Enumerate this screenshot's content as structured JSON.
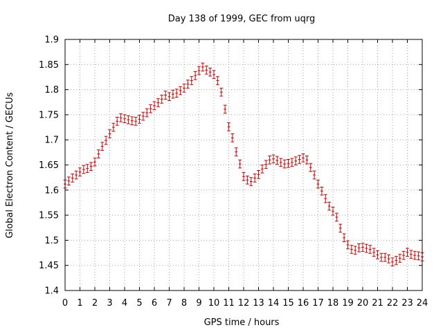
{
  "chart_data": {
    "type": "line",
    "title": "Day 138 of 1999, GEC from uqrg",
    "xlabel": "GPS time / hours",
    "ylabel": "Global Electron Content / GECUs",
    "xlim": [
      0,
      24
    ],
    "ylim": [
      1.4,
      1.9
    ],
    "xticks": [
      "0",
      "1",
      "2",
      "3",
      "4",
      "5",
      "6",
      "7",
      "8",
      "9",
      "10",
      "11",
      "12",
      "13",
      "14",
      "15",
      "16",
      "17",
      "18",
      "19",
      "20",
      "21",
      "22",
      "23",
      "24"
    ],
    "yticks": [
      "1.4",
      "1.45",
      "1.5",
      "1.55",
      "1.6",
      "1.65",
      "1.7",
      "1.75",
      "1.8",
      "1.85",
      "1.9"
    ],
    "grid": true,
    "series_color": "#cc0000",
    "error": 0.008,
    "series": [
      {
        "name": "GEC",
        "x": [
          0.0,
          0.25,
          0.5,
          0.75,
          1.0,
          1.25,
          1.5,
          1.75,
          2.0,
          2.25,
          2.5,
          2.75,
          3.0,
          3.25,
          3.5,
          3.75,
          4.0,
          4.25,
          4.5,
          4.75,
          5.0,
          5.25,
          5.5,
          5.75,
          6.0,
          6.25,
          6.5,
          6.75,
          7.0,
          7.25,
          7.5,
          7.75,
          8.0,
          8.25,
          8.5,
          8.75,
          9.0,
          9.25,
          9.5,
          9.75,
          10.0,
          10.25,
          10.5,
          10.75,
          11.0,
          11.25,
          11.5,
          11.75,
          12.0,
          12.25,
          12.5,
          12.75,
          13.0,
          13.25,
          13.5,
          13.75,
          14.0,
          14.25,
          14.5,
          14.75,
          15.0,
          15.25,
          15.5,
          15.75,
          16.0,
          16.25,
          16.5,
          16.75,
          17.0,
          17.25,
          17.5,
          17.75,
          18.0,
          18.25,
          18.5,
          18.75,
          19.0,
          19.25,
          19.5,
          19.75,
          20.0,
          20.25,
          20.5,
          20.75,
          21.0,
          21.25,
          21.5,
          21.75,
          22.0,
          22.25,
          22.5,
          22.75,
          23.0,
          23.25,
          23.5,
          23.75,
          24.0
        ],
        "values": [
          1.612,
          1.618,
          1.624,
          1.63,
          1.636,
          1.641,
          1.643,
          1.647,
          1.656,
          1.672,
          1.687,
          1.699,
          1.712,
          1.725,
          1.737,
          1.744,
          1.742,
          1.74,
          1.738,
          1.737,
          1.741,
          1.747,
          1.754,
          1.762,
          1.768,
          1.774,
          1.781,
          1.789,
          1.786,
          1.791,
          1.793,
          1.798,
          1.803,
          1.811,
          1.818,
          1.828,
          1.838,
          1.845,
          1.839,
          1.835,
          1.83,
          1.818,
          1.795,
          1.761,
          1.726,
          1.704,
          1.676,
          1.652,
          1.627,
          1.62,
          1.617,
          1.624,
          1.631,
          1.642,
          1.651,
          1.66,
          1.662,
          1.659,
          1.655,
          1.652,
          1.653,
          1.655,
          1.658,
          1.661,
          1.664,
          1.66,
          1.645,
          1.63,
          1.612,
          1.598,
          1.583,
          1.568,
          1.558,
          1.546,
          1.524,
          1.505,
          1.491,
          1.482,
          1.48,
          1.485,
          1.486,
          1.484,
          1.482,
          1.476,
          1.471,
          1.466,
          1.466,
          1.463,
          1.457,
          1.46,
          1.464,
          1.47,
          1.476,
          1.472,
          1.47,
          1.469,
          1.467
        ]
      }
    ]
  }
}
